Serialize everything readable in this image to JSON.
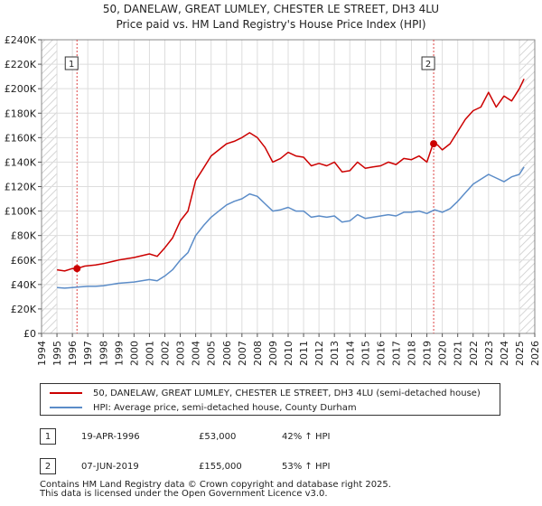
{
  "chart_data": {
    "type": "line",
    "title": "50, DANELAW, GREAT LUMLEY, CHESTER LE STREET, DH3 4LU",
    "subtitle": "Price paid vs. HM Land Registry's House Price Index (HPI)",
    "xlabel": "",
    "ylabel": "",
    "xlim": [
      1994,
      2026
    ],
    "ylim": [
      0,
      240000
    ],
    "grid": true,
    "y_ticks": [
      0,
      20000,
      40000,
      60000,
      80000,
      100000,
      120000,
      140000,
      160000,
      180000,
      200000,
      220000,
      240000
    ],
    "y_tick_labels": [
      "£0",
      "£20K",
      "£40K",
      "£60K",
      "£80K",
      "£100K",
      "£120K",
      "£140K",
      "£160K",
      "£180K",
      "£200K",
      "£220K",
      "£240K"
    ],
    "x_tick_labels": [
      "1994",
      "1995",
      "1996",
      "1997",
      "1998",
      "1999",
      "2000",
      "2001",
      "2002",
      "2003",
      "2004",
      "2005",
      "2006",
      "2007",
      "2008",
      "2009",
      "2010",
      "2011",
      "2012",
      "2013",
      "2014",
      "2015",
      "2016",
      "2017",
      "2018",
      "2019",
      "2020",
      "2021",
      "2022",
      "2023",
      "2024",
      "2025",
      "2026"
    ],
    "hatched_ranges": [
      [
        1994,
        1995
      ],
      [
        2025,
        2026
      ]
    ],
    "series": [
      {
        "name": "50, DANELAW, GREAT LUMLEY, CHESTER LE STREET, DH3 4LU (semi-detached house)",
        "color": "#cc0000",
        "x": [
          1995.0,
          1995.5,
          1996.0,
          1996.3,
          1996.8,
          1997.5,
          1998.0,
          1999.0,
          2000.0,
          2001.0,
          2001.5,
          2002.0,
          2002.5,
          2003.0,
          2003.5,
          2004.0,
          2004.5,
          2005.0,
          2005.5,
          2006.0,
          2006.5,
          2007.0,
          2007.5,
          2008.0,
          2008.5,
          2009.0,
          2009.5,
          2010.0,
          2010.5,
          2011.0,
          2011.5,
          2012.0,
          2012.5,
          2013.0,
          2013.5,
          2014.0,
          2014.5,
          2015.0,
          2015.5,
          2016.0,
          2016.5,
          2017.0,
          2017.5,
          2018.0,
          2018.5,
          2019.0,
          2019.4,
          2019.7,
          2020.0,
          2020.5,
          2021.0,
          2021.5,
          2022.0,
          2022.5,
          2023.0,
          2023.5,
          2024.0,
          2024.5,
          2025.0,
          2025.3
        ],
        "values": [
          52000,
          51000,
          53000,
          53000,
          55000,
          56000,
          57000,
          60000,
          62000,
          65000,
          63000,
          70000,
          78000,
          92000,
          100000,
          125000,
          135000,
          145000,
          150000,
          155000,
          157000,
          160000,
          164000,
          160000,
          152000,
          140000,
          143000,
          148000,
          145000,
          144000,
          137000,
          139000,
          137000,
          140000,
          132000,
          133000,
          140000,
          135000,
          136000,
          137000,
          140000,
          138000,
          143000,
          142000,
          145000,
          140000,
          155000,
          154000,
          150000,
          155000,
          165000,
          175000,
          182000,
          185000,
          197000,
          185000,
          194000,
          190000,
          200000,
          208000
        ]
      },
      {
        "name": "HPI: Average price, semi-detached house, County Durham",
        "color": "#5b8cc8",
        "x": [
          1995.0,
          1995.5,
          1996.0,
          1996.5,
          1997.0,
          1997.5,
          1998.0,
          1999.0,
          2000.0,
          2001.0,
          2001.5,
          2002.0,
          2002.5,
          2003.0,
          2003.5,
          2004.0,
          2004.5,
          2005.0,
          2005.5,
          2006.0,
          2006.5,
          2007.0,
          2007.5,
          2008.0,
          2008.5,
          2009.0,
          2009.5,
          2010.0,
          2010.5,
          2011.0,
          2011.5,
          2012.0,
          2012.5,
          2013.0,
          2013.5,
          2014.0,
          2014.5,
          2015.0,
          2015.5,
          2016.0,
          2016.5,
          2017.0,
          2017.5,
          2018.0,
          2018.5,
          2019.0,
          2019.5,
          2020.0,
          2020.5,
          2021.0,
          2021.5,
          2022.0,
          2022.5,
          2023.0,
          2023.5,
          2024.0,
          2024.5,
          2025.0,
          2025.3
        ],
        "values": [
          37500,
          37000,
          37500,
          38000,
          38500,
          38500,
          39000,
          41000,
          42000,
          44000,
          43000,
          47000,
          52000,
          60000,
          66000,
          80000,
          88000,
          95000,
          100000,
          105000,
          108000,
          110000,
          114000,
          112000,
          106000,
          100000,
          101000,
          103000,
          100000,
          100000,
          95000,
          96000,
          95000,
          96000,
          91000,
          92000,
          97000,
          94000,
          95000,
          96000,
          97000,
          96000,
          99000,
          99000,
          100000,
          98000,
          101000,
          99000,
          102000,
          108000,
          115000,
          122000,
          126000,
          130000,
          127000,
          124000,
          128000,
          130000,
          136000
        ]
      }
    ],
    "annotations": [
      {
        "label": "1",
        "x": 1996.3,
        "y": 53000
      },
      {
        "label": "2",
        "x": 2019.44,
        "y": 155000
      }
    ]
  },
  "legend": {
    "property_label": "50, DANELAW, GREAT LUMLEY, CHESTER LE STREET, DH3 4LU (semi-detached house)",
    "hpi_label": "HPI: Average price, semi-detached house, County Durham",
    "property_color": "#cc0000",
    "hpi_color": "#5b8cc8"
  },
  "sales": [
    {
      "num": "1",
      "date": "19-APR-1996",
      "price": "£53,000",
      "hpi": "42% ↑ HPI"
    },
    {
      "num": "2",
      "date": "07-JUN-2019",
      "price": "£155,000",
      "hpi": "53% ↑ HPI"
    }
  ],
  "footer": {
    "line1": "Contains HM Land Registry data © Crown copyright and database right 2025.",
    "line2": "This data is licensed under the Open Government Licence v3.0."
  }
}
